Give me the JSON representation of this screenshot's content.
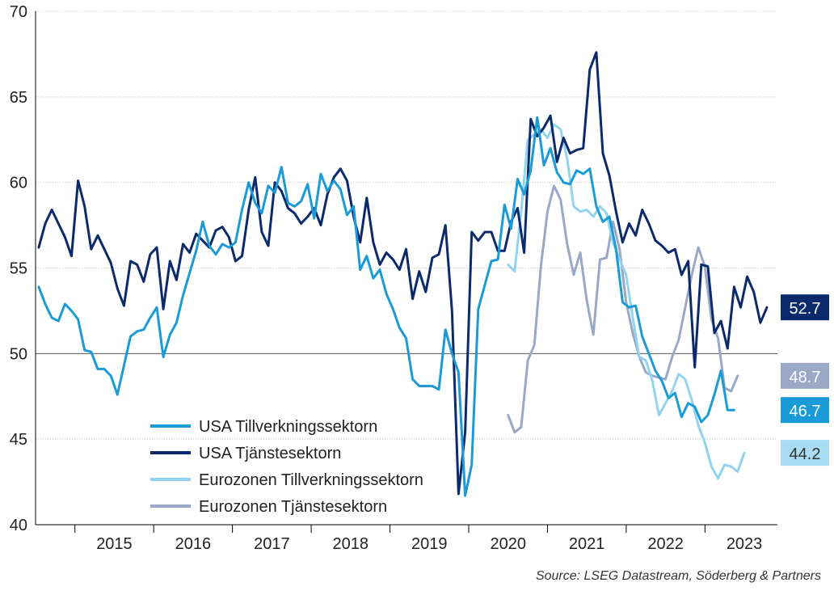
{
  "chart_data": {
    "type": "line",
    "ylim": [
      40,
      70
    ],
    "yticks": [
      "40",
      "45",
      "50",
      "55",
      "60",
      "65",
      "70"
    ],
    "xlim": [
      2014.5,
      2023.92
    ],
    "year_labels": [
      "2015",
      "2016",
      "2017",
      "2018",
      "2019",
      "2020",
      "2021",
      "2022",
      "2023"
    ],
    "reference_line": 50,
    "grid": "horizontal dotted",
    "legend_position": "bottom-left",
    "source": "Source: LSEG Datastream, Söderberg & Partners",
    "colors": {
      "usa_manufacturing": "#1a9bd7",
      "usa_services": "#0b2a6b",
      "ez_manufacturing": "#92d4ef",
      "ez_services": "#9aa8c8",
      "axis": "#000000",
      "grid": "#bfbfbf"
    },
    "end_labels": [
      {
        "series": "usa_services",
        "text": "52.7",
        "value": 52.7,
        "text_color": "#ffffff",
        "bg": "#0b2a6b"
      },
      {
        "series": "ez_services",
        "text": "48.7",
        "value": 48.7,
        "text_color": "#ffffff",
        "bg": "#9aa8c8"
      },
      {
        "series": "usa_manufacturing",
        "text": "46.7",
        "value": 46.7,
        "text_color": "#ffffff",
        "bg": "#1a9bd7"
      },
      {
        "series": "ez_manufacturing",
        "text": "44.2",
        "value": 44.2,
        "text_color": "#333333",
        "bg": "#a9ddf3"
      }
    ],
    "series": [
      {
        "key": "usa_manufacturing",
        "name": "USA Tillverkningssektorn",
        "start": 2014.54,
        "step": 0.0833,
        "values": [
          53.9,
          52.9,
          52.1,
          51.9,
          52.9,
          52.5,
          52.0,
          50.2,
          50.1,
          49.1,
          49.1,
          48.7,
          47.6,
          49.3,
          51.0,
          51.3,
          51.4,
          52.1,
          52.7,
          49.8,
          51.1,
          51.8,
          53.4,
          54.7,
          56.0,
          57.7,
          56.3,
          55.8,
          56.4,
          56.2,
          56.5,
          58.4,
          60.0,
          58.8,
          58.2,
          59.8,
          59.4,
          60.9,
          58.8,
          58.6,
          58.9,
          59.9,
          57.9,
          60.5,
          59.5,
          60.1,
          59.6,
          58.1,
          58.6,
          54.9,
          55.7,
          54.4,
          54.9,
          53.5,
          52.6,
          51.5,
          50.9,
          48.5,
          48.1,
          48.1,
          48.1,
          47.9,
          51.4,
          50.0,
          48.9,
          41.7,
          43.5,
          52.6,
          54.0,
          55.4,
          55.5,
          58.7,
          57.3,
          60.2,
          59.3,
          60.7,
          63.8,
          61.0,
          62.0,
          60.6,
          60.0,
          59.9,
          60.7,
          60.5,
          60.8,
          58.6,
          57.7,
          58.0,
          56.1,
          53.0,
          52.7,
          52.8,
          51.0,
          50.0,
          49.0,
          48.4,
          47.4,
          47.7,
          46.3,
          47.1,
          46.9,
          46.0,
          46.4,
          47.6,
          49.0,
          46.7,
          46.7
        ]
      },
      {
        "key": "usa_services",
        "name": "USA Tjänstesektorn",
        "start": 2014.54,
        "step": 0.0833,
        "values": [
          56.2,
          57.6,
          58.4,
          57.6,
          56.8,
          55.7,
          60.1,
          58.6,
          56.1,
          56.9,
          56.1,
          55.3,
          53.8,
          52.8,
          55.4,
          55.2,
          54.2,
          55.8,
          56.2,
          52.6,
          55.4,
          54.3,
          56.4,
          55.9,
          57.0,
          56.6,
          56.2,
          57.2,
          57.4,
          56.8,
          55.4,
          55.7,
          58.4,
          60.3,
          57.1,
          56.3,
          60.0,
          59.5,
          58.5,
          58.2,
          57.6,
          58.0,
          58.5,
          57.5,
          59.3,
          60.3,
          60.8,
          60.1,
          58.0,
          56.5,
          59.1,
          56.5,
          55.2,
          55.9,
          55.5,
          54.9,
          56.1,
          53.2,
          54.8,
          53.6,
          55.6,
          55.8,
          57.5,
          52.5,
          41.8,
          45.4,
          57.1,
          56.6,
          57.1,
          57.1,
          56.0,
          56.0,
          57.7,
          58.5,
          55.9,
          63.7,
          62.7,
          63.2,
          63.9,
          61.2,
          62.6,
          61.7,
          61.9,
          62.0,
          66.6,
          67.6,
          61.7,
          60.4,
          58.3,
          56.5,
          57.6,
          56.9,
          58.4,
          57.6,
          56.6,
          56.3,
          55.9,
          56.1,
          54.6,
          55.4,
          49.2,
          55.2,
          55.1,
          51.2,
          51.9,
          50.3,
          53.9,
          52.7,
          54.5,
          53.6,
          51.8,
          52.7
        ]
      },
      {
        "key": "ez_manufacturing",
        "name": "Eurozonen Tillverkningssektorn",
        "start": 2020.5,
        "step": 0.0833,
        "values": [
          55.2,
          54.8,
          58.3,
          62.5,
          62.8,
          63.1,
          62.6,
          63.4,
          63.1,
          61.4,
          58.6,
          58.3,
          58.4,
          58.0,
          58.6,
          58.2,
          56.5,
          55.5,
          54.6,
          52.1,
          49.8,
          49.6,
          48.4,
          46.4,
          47.1,
          47.8,
          48.8,
          48.5,
          47.3,
          45.8,
          44.8,
          43.4,
          42.7,
          43.5,
          43.4,
          43.1,
          44.2
        ]
      },
      {
        "key": "ez_services",
        "name": "Eurozonen Tjänstesektorn",
        "start": 2020.5,
        "step": 0.0833,
        "values": [
          46.4,
          45.4,
          45.7,
          49.6,
          50.5,
          55.1,
          58.3,
          59.8,
          59.0,
          56.4,
          54.6,
          55.9,
          53.1,
          51.1,
          55.5,
          55.6,
          57.7,
          56.1,
          53.0,
          51.2,
          49.8,
          48.9,
          48.7,
          48.6,
          48.5,
          49.8,
          50.8,
          52.7,
          54.6,
          56.2,
          55.1,
          52.0,
          50.9,
          48.0,
          47.8,
          48.7
        ]
      }
    ]
  }
}
